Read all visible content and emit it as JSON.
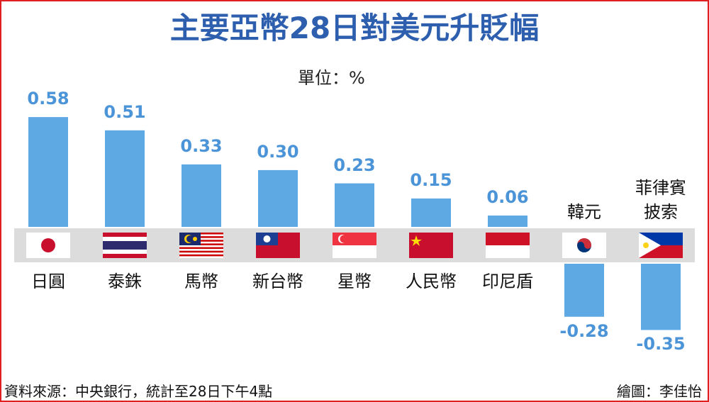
{
  "chart_data": {
    "type": "bar",
    "title": "主要亞幣28日對美元升貶幅",
    "unit": "單位：%",
    "categories": [
      "日圓",
      "泰銖",
      "馬幣",
      "新台幣",
      "星幣",
      "人民幣",
      "印尼盾",
      "韓元",
      "菲律賓\n披索"
    ],
    "values": [
      0.58,
      0.51,
      0.33,
      0.3,
      0.23,
      0.15,
      0.06,
      -0.28,
      -0.35
    ],
    "value_labels": [
      "0.58",
      "0.51",
      "0.33",
      "0.30",
      "0.23",
      "0.15",
      "0.06",
      "-0.28",
      "-0.35"
    ],
    "color": "#5ea8e4",
    "source": "資料來源：中央銀行，統計至28日下午4點",
    "credit": "繪圖：李佳怡"
  }
}
